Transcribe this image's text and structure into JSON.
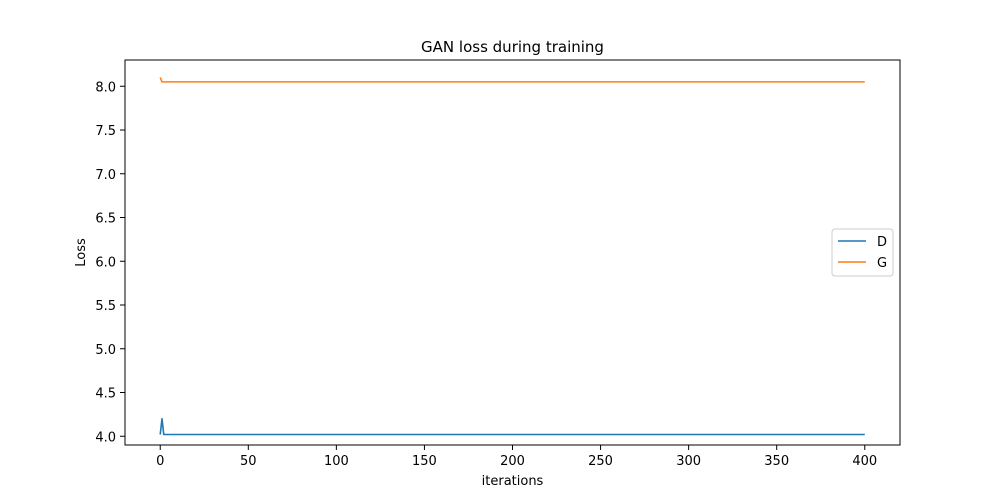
{
  "chart_data": {
    "type": "line",
    "title": "GAN loss during training",
    "xlabel": "iterations",
    "ylabel": "Loss",
    "xlim": [
      -20,
      420
    ],
    "ylim": [
      3.9,
      8.3
    ],
    "xticks": [
      0,
      50,
      100,
      150,
      200,
      250,
      300,
      350,
      400
    ],
    "yticks": [
      4.0,
      4.5,
      5.0,
      5.5,
      6.0,
      6.5,
      7.0,
      7.5,
      8.0
    ],
    "grid": false,
    "legend_position": "center-right",
    "series": [
      {
        "name": "D",
        "color": "#1f77b4",
        "points": [
          [
            0,
            4.02
          ],
          [
            1,
            4.2
          ],
          [
            2,
            4.02
          ],
          [
            400,
            4.02
          ]
        ]
      },
      {
        "name": "G",
        "color": "#ff7f0e",
        "points": [
          [
            0,
            8.1
          ],
          [
            1,
            8.05
          ],
          [
            2,
            8.05
          ],
          [
            400,
            8.05
          ]
        ]
      }
    ]
  }
}
